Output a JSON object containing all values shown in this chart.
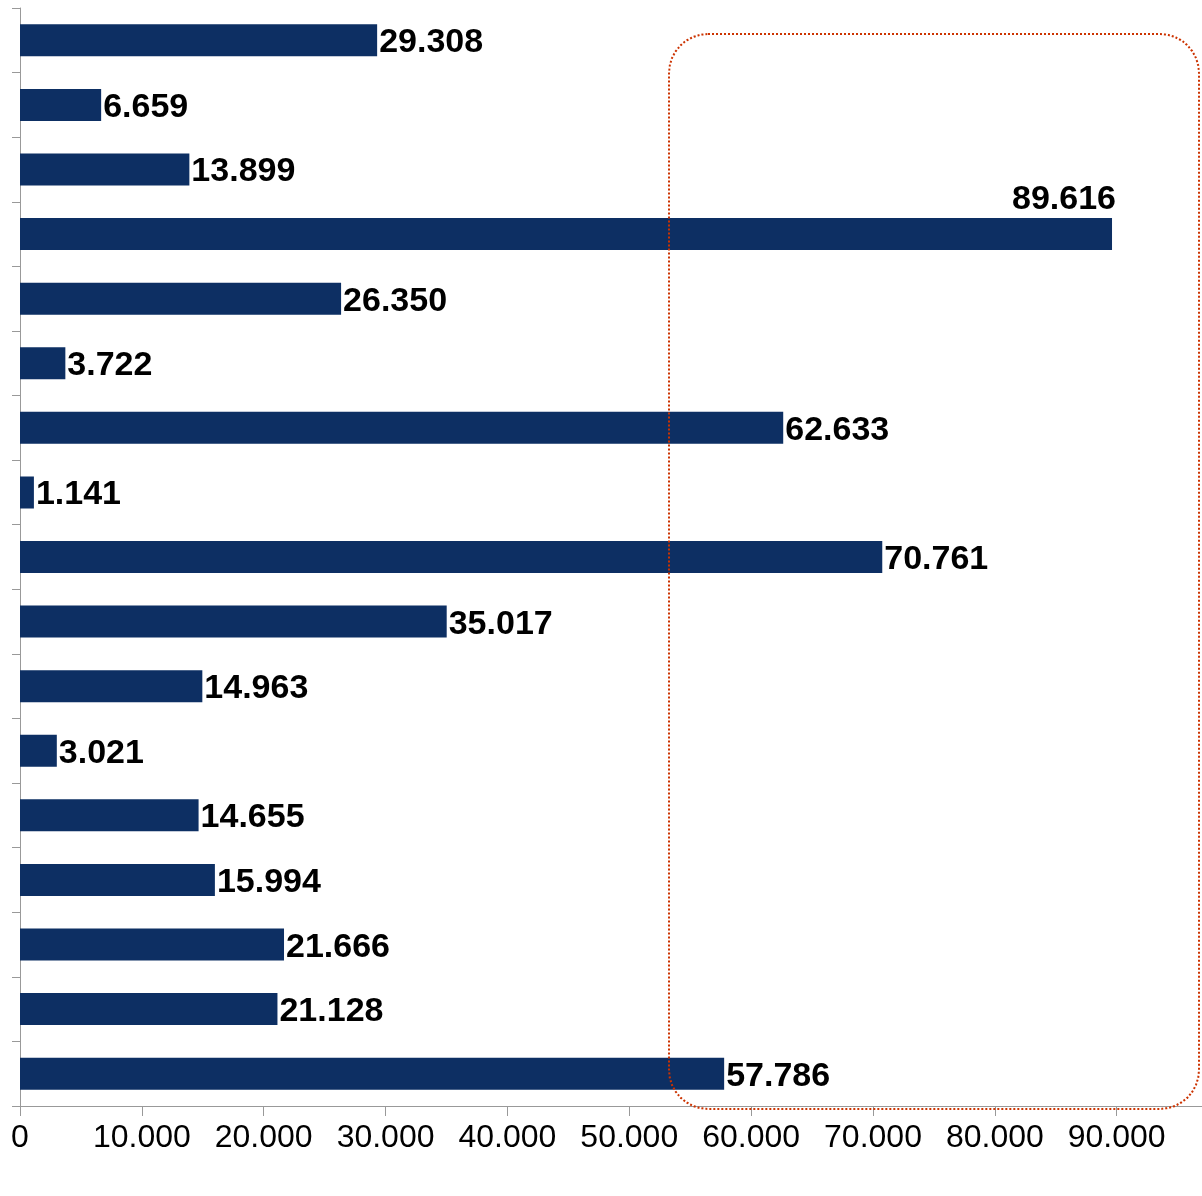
{
  "chart_data": {
    "type": "bar",
    "orientation": "horizontal",
    "color": "#0d2f63",
    "categories": [
      null,
      null,
      null,
      null,
      null,
      null,
      null,
      null,
      null,
      null,
      null,
      null,
      null,
      null,
      null,
      null,
      null
    ],
    "values": [
      29308,
      6659,
      13899,
      89616,
      26350,
      3722,
      62633,
      1141,
      70761,
      35017,
      14963,
      3021,
      14655,
      15994,
      21666,
      21128,
      57786
    ],
    "value_labels": [
      "29.308",
      "6.659",
      "13.899",
      "89.616",
      "26.350",
      "3.722",
      "62.633",
      "1.141",
      "70.761",
      "35.017",
      "14.963",
      "3.021",
      "14.655",
      "15.994",
      "21.666",
      "21.128",
      "57.786"
    ],
    "xlim": [
      0,
      97000
    ],
    "xticks": [
      0,
      {
        "value": 10000,
        "label": "10.000"
      },
      {
        "value": 20000,
        "label": "20.000"
      },
      {
        "value": 30000,
        "label": "30.000"
      },
      {
        "value": 40000,
        "label": "40.000"
      },
      {
        "value": 50000,
        "label": "50.000"
      },
      {
        "value": 60000,
        "label": "60.000"
      },
      {
        "value": 70000,
        "label": "70.000"
      },
      {
        "value": 80000,
        "label": "80.000"
      },
      {
        "value": 90000,
        "label": "90.000"
      }
    ],
    "grid": false
  }
}
